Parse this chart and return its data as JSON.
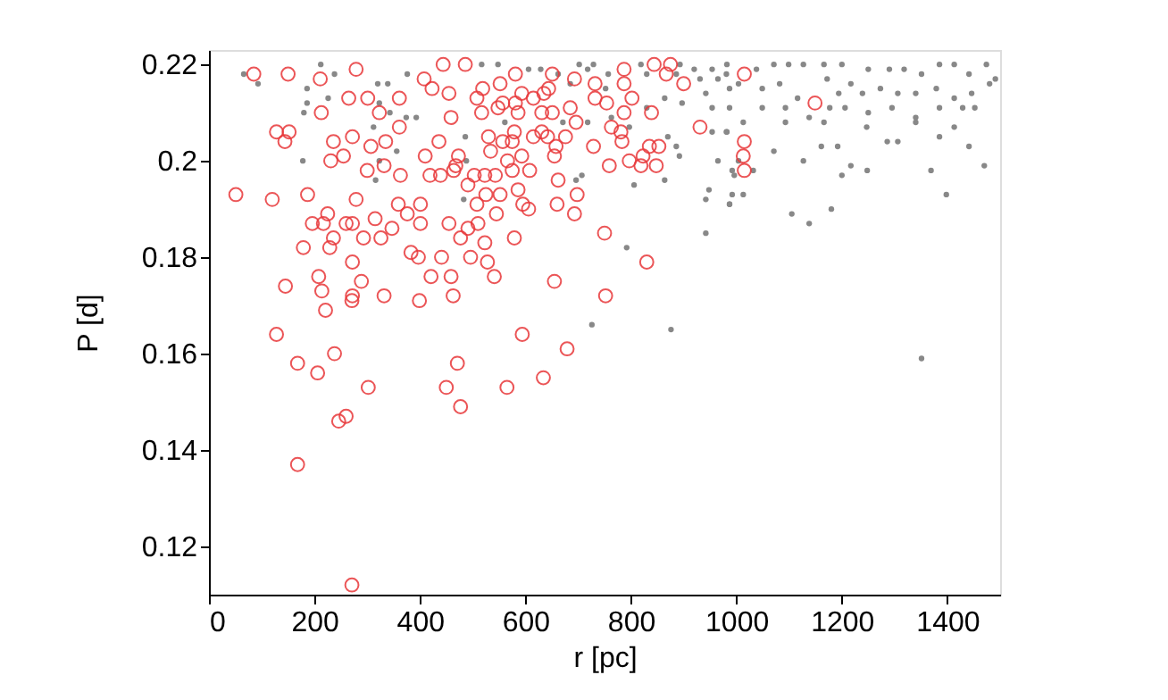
{
  "chart_data": {
    "type": "scatter",
    "xlabel": "r [pc]",
    "ylabel": "P [d]",
    "xlim": [
      0,
      1500
    ],
    "ylim": [
      0.11,
      0.223
    ],
    "xticks": [
      0,
      200,
      400,
      600,
      800,
      1000,
      1200,
      1400
    ],
    "yticks": [
      0.12,
      0.14,
      0.16,
      0.18,
      0.2,
      0.22
    ],
    "grid": false,
    "legend": false,
    "series": [
      {
        "type": "scatter",
        "marker": "circle",
        "color": "#888888",
        "x": [
          66,
          212,
          93,
          186,
          180,
          186,
          226,
          238,
          320,
          339,
          376,
          323,
          343,
          374,
          393,
          312,
          356,
          323,
          316,
          178,
          486,
          488,
          483,
          517,
          548,
          606,
          629,
          702,
          729,
          757,
          819,
          830,
          893,
          920,
          954,
          982,
          886,
          931,
          965,
          942,
          987,
          864,
          897,
          954,
          987,
          830,
          763,
          718,
          671,
          561,
          797,
          870,
          886,
          954,
          982,
          892,
          965,
          707,
          696,
          806,
          864,
          948,
          942,
          987,
          996,
          942,
          792,
          718,
          662,
          752,
          685,
          981,
          1004,
          1038,
          1071,
          1099,
          1127,
          1166,
          1200,
          1250,
          1290,
          1318,
          1351,
          1385,
          1413,
          1474,
          1491,
          1441,
          1049,
          1082,
          1116,
          1172,
          1194,
          1217,
          1239,
          1273,
          1306,
          1340,
          1379,
          1413,
          1446,
          1480,
          1049,
          1093,
          1138,
          1177,
          1206,
          1250,
          1295,
          1340,
          1385,
          1429,
          1452,
          1013,
          1093,
          1166,
          1247,
          1340,
          1413,
          981,
          1161,
          1192,
          1286,
          1306,
          1385,
          1441,
          1071,
          1127,
          1217,
          1248,
          1200,
          1369,
          1470,
          992,
          1032,
          1004,
          992,
          1013,
          987,
          1398,
          1105,
          1138,
          726,
          876,
          1351,
          1180
        ],
        "values": [
          0.218,
          0.22,
          0.216,
          0.215,
          0.21,
          0.212,
          0.213,
          0.218,
          0.216,
          0.216,
          0.218,
          0.212,
          0.21,
          0.209,
          0.209,
          0.207,
          0.202,
          0.2,
          0.196,
          0.2,
          0.205,
          0.2,
          0.192,
          0.22,
          0.22,
          0.219,
          0.219,
          0.22,
          0.22,
          0.218,
          0.22,
          0.218,
          0.22,
          0.219,
          0.219,
          0.22,
          0.218,
          0.217,
          0.217,
          0.214,
          0.215,
          0.213,
          0.212,
          0.211,
          0.211,
          0.211,
          0.209,
          0.208,
          0.208,
          0.208,
          0.207,
          0.205,
          0.203,
          0.206,
          0.206,
          0.201,
          0.2,
          0.197,
          0.196,
          0.195,
          0.196,
          0.194,
          0.192,
          0.191,
          0.197,
          0.185,
          0.182,
          0.219,
          0.218,
          0.215,
          0.216,
          0.218,
          0.216,
          0.219,
          0.22,
          0.22,
          0.22,
          0.22,
          0.22,
          0.219,
          0.219,
          0.219,
          0.218,
          0.22,
          0.22,
          0.22,
          0.217,
          0.218,
          0.215,
          0.216,
          0.213,
          0.217,
          0.214,
          0.216,
          0.214,
          0.215,
          0.214,
          0.214,
          0.215,
          0.213,
          0.214,
          0.216,
          0.211,
          0.211,
          0.209,
          0.211,
          0.211,
          0.21,
          0.211,
          0.209,
          0.211,
          0.211,
          0.211,
          0.208,
          0.208,
          0.208,
          0.207,
          0.208,
          0.207,
          0.206,
          0.203,
          0.203,
          0.204,
          0.204,
          0.205,
          0.203,
          0.202,
          0.2,
          0.199,
          0.198,
          0.197,
          0.198,
          0.199,
          0.198,
          0.198,
          0.2,
          0.193,
          0.193,
          0.191,
          0.193,
          0.189,
          0.187,
          0.166,
          0.165,
          0.159,
          0.19
        ]
      },
      {
        "type": "scatter",
        "marker": "circle",
        "color": "#e8383a",
        "x": [
          85,
          150,
          211,
          279,
          265,
          213,
          301,
          361,
          323,
          128,
          152,
          144,
          236,
          272,
          255,
          231,
          307,
          335,
          361,
          300,
          332,
          363,
          51,
          120,
          187,
          279,
          196,
          225,
          217,
          260,
          272,
          315,
          359,
          376,
          347,
          401,
          236,
          179,
          229,
          293,
          326,
          383,
          397,
          441,
          496,
          272,
          208,
          289,
          145,
          214,
          272,
          332,
          399,
          421,
          459,
          463,
          221,
          271,
          401,
          419,
          439,
          410,
          436,
          464,
          473,
          459,
          455,
          408,
          444,
          486,
          423,
          491,
          455,
          491,
          477,
          468,
          581,
          651,
          693,
          732,
          787,
          844,
          875,
          867,
          900,
          787,
          732,
          754,
          802,
          644,
          635,
          593,
          552,
          519,
          508,
          517,
          548,
          557,
          581,
          586,
          615,
          631,
          651,
          685,
          696,
          631,
          579,
          530,
          557,
          575,
          615,
          642,
          658,
          676,
          729,
          763,
          781,
          783,
          787,
          839,
          835,
          853,
          823,
          797,
          848,
          819,
          931,
          534,
          655,
          593,
          566,
          575,
          608,
          759,
          503,
          523,
          543,
          662,
          552,
          586,
          525,
          698,
          660,
          508,
          595,
          606,
          545,
          693,
          510,
          523,
          579,
          750,
          528,
          541,
          830,
          655,
          752,
          1015,
          1149,
          1015,
          1013,
          1015,
          128,
          168,
          206,
          238,
          302,
          246,
          260,
          168,
          271,
          594,
          679,
          471,
          450,
          477,
          565,
          634
        ],
        "values": [
          0.218,
          0.218,
          0.217,
          0.219,
          0.213,
          0.21,
          0.213,
          0.213,
          0.21,
          0.206,
          0.206,
          0.204,
          0.204,
          0.205,
          0.201,
          0.2,
          0.203,
          0.204,
          0.207,
          0.198,
          0.199,
          0.197,
          0.193,
          0.192,
          0.193,
          0.192,
          0.187,
          0.189,
          0.187,
          0.187,
          0.187,
          0.188,
          0.191,
          0.189,
          0.186,
          0.187,
          0.184,
          0.182,
          0.182,
          0.184,
          0.184,
          0.181,
          0.18,
          0.18,
          0.18,
          0.179,
          0.176,
          0.175,
          0.174,
          0.173,
          0.172,
          0.172,
          0.171,
          0.176,
          0.176,
          0.172,
          0.169,
          0.171,
          0.191,
          0.197,
          0.197,
          0.201,
          0.204,
          0.198,
          0.201,
          0.209,
          0.214,
          0.217,
          0.22,
          0.22,
          0.215,
          0.195,
          0.187,
          0.186,
          0.184,
          0.199,
          0.218,
          0.218,
          0.217,
          0.216,
          0.219,
          0.22,
          0.22,
          0.218,
          0.216,
          0.216,
          0.213,
          0.212,
          0.213,
          0.215,
          0.214,
          0.214,
          0.216,
          0.215,
          0.213,
          0.21,
          0.211,
          0.212,
          0.212,
          0.21,
          0.213,
          0.21,
          0.21,
          0.211,
          0.208,
          0.206,
          0.206,
          0.205,
          0.204,
          0.204,
          0.205,
          0.205,
          0.203,
          0.205,
          0.203,
          0.207,
          0.206,
          0.204,
          0.21,
          0.21,
          0.203,
          0.203,
          0.201,
          0.2,
          0.199,
          0.199,
          0.207,
          0.202,
          0.201,
          0.201,
          0.2,
          0.198,
          0.198,
          0.199,
          0.197,
          0.197,
          0.197,
          0.196,
          0.193,
          0.194,
          0.193,
          0.193,
          0.191,
          0.191,
          0.191,
          0.19,
          0.189,
          0.189,
          0.187,
          0.183,
          0.184,
          0.185,
          0.179,
          0.176,
          0.179,
          0.175,
          0.172,
          0.218,
          0.212,
          0.204,
          0.201,
          0.198,
          0.164,
          0.158,
          0.156,
          0.16,
          0.153,
          0.146,
          0.147,
          0.137,
          0.112,
          0.164,
          0.161,
          0.158,
          0.153,
          0.149,
          0.153,
          0.155
        ]
      }
    ]
  }
}
